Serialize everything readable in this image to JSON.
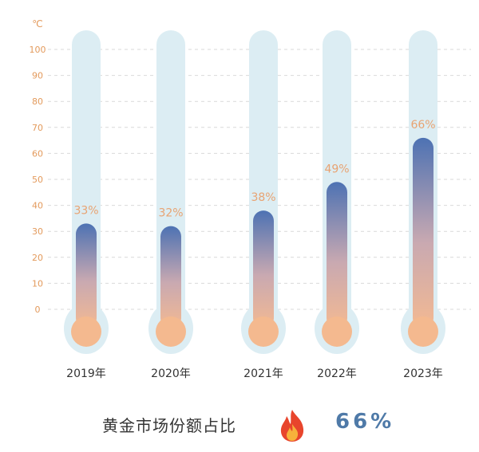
{
  "chart_data": {
    "type": "bar",
    "style": "thermometer",
    "categories": [
      "2019年",
      "2020年",
      "2021年",
      "2022年",
      "2023年"
    ],
    "values": [
      33,
      32,
      38,
      49,
      66
    ],
    "value_labels": [
      "33%",
      "32%",
      "38%",
      "49%",
      "66%"
    ],
    "y_unit": "℃",
    "y_ticks": [
      "0",
      "10",
      "20",
      "30",
      "40",
      "50",
      "60",
      "70",
      "80",
      "90",
      "100"
    ],
    "ylim": [
      0,
      100
    ],
    "grid": true,
    "colors": {
      "tube": "#dcedf3",
      "fill_top": "#4d72b3",
      "fill_bottom": "#f3b992",
      "bulb": "#f4b98f",
      "tick_label": "#e39a5c",
      "value_label": "#e8a372",
      "grid": "#d9d9d9"
    }
  },
  "caption": {
    "label": "黄金市场份额占比",
    "icon": "fire-icon",
    "value": "66%",
    "value_color": "#4f7aa8"
  }
}
